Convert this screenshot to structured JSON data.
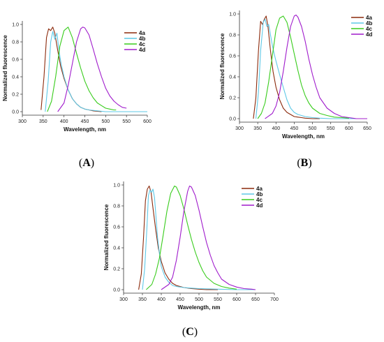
{
  "colors": {
    "4a": "#8b2a0c",
    "4b": "#5ec8e6",
    "4c": "#38cc1c",
    "4d": "#a01ccc"
  },
  "chart_data": [
    {
      "panel": "A",
      "type": "line",
      "xlabel": "Wavelength, nm",
      "ylabel": "Normalized fluorescence",
      "xlim": [
        300,
        600
      ],
      "ylim": [
        0,
        1.0
      ],
      "xticks": [
        300,
        350,
        400,
        450,
        500,
        550,
        600
      ],
      "yticks": [
        0.0,
        0.2,
        0.4,
        0.6,
        0.8,
        1.0
      ],
      "legend_position": "top-right",
      "grid": false,
      "series": [
        {
          "name": "4a",
          "x": [
            345,
            352,
            358,
            363,
            368,
            373,
            378,
            385,
            392,
            400,
            410,
            420,
            430,
            440,
            450,
            460,
            470,
            480,
            490
          ],
          "y": [
            0.02,
            0.4,
            0.85,
            0.95,
            0.93,
            0.97,
            0.9,
            0.7,
            0.52,
            0.38,
            0.25,
            0.15,
            0.09,
            0.05,
            0.03,
            0.02,
            0.01,
            0.005,
            0.0
          ]
        },
        {
          "name": "4b",
          "x": [
            355,
            362,
            368,
            373,
            378,
            383,
            388,
            393,
            400,
            410,
            420,
            430,
            440,
            450,
            460,
            480,
            500,
            550,
            600
          ],
          "y": [
            0.0,
            0.35,
            0.8,
            0.92,
            0.83,
            0.9,
            0.7,
            0.55,
            0.4,
            0.25,
            0.15,
            0.09,
            0.05,
            0.03,
            0.02,
            0.01,
            0.0,
            0.0,
            0.0
          ]
        },
        {
          "name": "4c",
          "x": [
            360,
            370,
            380,
            390,
            400,
            410,
            420,
            430,
            440,
            450,
            460,
            470,
            480,
            490,
            500,
            510,
            520,
            525
          ],
          "y": [
            0.0,
            0.12,
            0.4,
            0.75,
            0.93,
            0.97,
            0.85,
            0.67,
            0.5,
            0.35,
            0.24,
            0.16,
            0.1,
            0.07,
            0.04,
            0.03,
            0.02,
            0.02
          ]
        },
        {
          "name": "4d",
          "x": [
            385,
            400,
            410,
            420,
            430,
            440,
            445,
            450,
            460,
            470,
            480,
            490,
            500,
            510,
            520,
            530,
            540,
            550
          ],
          "y": [
            0.0,
            0.1,
            0.3,
            0.55,
            0.8,
            0.95,
            0.97,
            0.96,
            0.88,
            0.72,
            0.55,
            0.4,
            0.27,
            0.18,
            0.12,
            0.08,
            0.05,
            0.04
          ]
        }
      ]
    },
    {
      "panel": "B",
      "type": "line",
      "xlabel": "Wavelength, nm",
      "ylabel": "Normalized fluorescence",
      "xlim": [
        300,
        650
      ],
      "ylim": [
        0,
        1.0
      ],
      "xticks": [
        300,
        350,
        400,
        450,
        500,
        550,
        600,
        650
      ],
      "yticks": [
        0.0,
        0.2,
        0.4,
        0.6,
        0.8,
        1.0
      ],
      "legend_position": "top-right",
      "grid": false,
      "series": [
        {
          "name": "4a",
          "x": [
            338,
            345,
            352,
            358,
            363,
            368,
            373,
            378,
            385,
            392,
            400,
            410,
            420,
            430,
            440,
            450,
            460,
            470,
            480,
            500,
            520
          ],
          "y": [
            0.0,
            0.2,
            0.65,
            0.93,
            0.9,
            0.95,
            0.98,
            0.88,
            0.65,
            0.45,
            0.3,
            0.18,
            0.1,
            0.06,
            0.04,
            0.02,
            0.015,
            0.01,
            0.005,
            0.0,
            0.0
          ]
        },
        {
          "name": "4b",
          "x": [
            345,
            352,
            358,
            365,
            370,
            375,
            380,
            385,
            390,
            395,
            400,
            410,
            420,
            430,
            440,
            450,
            460,
            470,
            480,
            500,
            520,
            550,
            600,
            650
          ],
          "y": [
            0.0,
            0.25,
            0.65,
            0.92,
            0.95,
            0.88,
            0.9,
            0.8,
            0.7,
            0.62,
            0.55,
            0.42,
            0.3,
            0.18,
            0.1,
            0.06,
            0.04,
            0.03,
            0.02,
            0.01,
            0.005,
            0.0,
            0.0,
            0.0
          ]
        },
        {
          "name": "4c",
          "x": [
            350,
            360,
            370,
            380,
            390,
            400,
            410,
            420,
            430,
            440,
            450,
            460,
            470,
            480,
            490,
            500,
            520,
            540,
            560,
            580,
            600
          ],
          "y": [
            0.0,
            0.05,
            0.15,
            0.35,
            0.6,
            0.85,
            0.96,
            0.98,
            0.92,
            0.78,
            0.62,
            0.46,
            0.32,
            0.22,
            0.15,
            0.1,
            0.05,
            0.03,
            0.015,
            0.01,
            0.005
          ]
        },
        {
          "name": "4d",
          "x": [
            370,
            390,
            400,
            410,
            420,
            430,
            440,
            450,
            455,
            460,
            470,
            480,
            490,
            500,
            510,
            520,
            540,
            560,
            580,
            600,
            620,
            650
          ],
          "y": [
            0.0,
            0.05,
            0.12,
            0.25,
            0.45,
            0.68,
            0.88,
            0.98,
            0.99,
            0.97,
            0.88,
            0.74,
            0.57,
            0.42,
            0.3,
            0.2,
            0.1,
            0.05,
            0.02,
            0.01,
            0.0,
            0.0
          ]
        }
      ]
    },
    {
      "panel": "C",
      "type": "line",
      "xlabel": "Wavelength, nm",
      "ylabel": "Normalized fluorescence",
      "xlim": [
        300,
        700
      ],
      "ylim": [
        0,
        1.0
      ],
      "xticks": [
        300,
        350,
        400,
        450,
        500,
        550,
        600,
        650,
        700
      ],
      "yticks": [
        0.0,
        0.2,
        0.4,
        0.6,
        0.8,
        1.0
      ],
      "legend_position": "top-right",
      "grid": false,
      "series": [
        {
          "name": "4a",
          "x": [
            340,
            347,
            353,
            358,
            363,
            368,
            373,
            378,
            385,
            392,
            400,
            410,
            420,
            430,
            440,
            450,
            460,
            480,
            500,
            520,
            550
          ],
          "y": [
            0.0,
            0.15,
            0.5,
            0.85,
            0.96,
            0.99,
            0.93,
            0.78,
            0.58,
            0.4,
            0.27,
            0.16,
            0.1,
            0.06,
            0.04,
            0.03,
            0.02,
            0.01,
            0.005,
            0.0,
            0.0
          ]
        },
        {
          "name": "4b",
          "x": [
            350,
            356,
            362,
            366,
            370,
            374,
            378,
            382,
            386,
            390,
            395,
            400,
            410,
            420,
            430,
            440,
            460,
            480,
            500,
            550,
            600,
            650
          ],
          "y": [
            0.0,
            0.2,
            0.6,
            0.9,
            0.95,
            0.93,
            0.96,
            0.88,
            0.7,
            0.5,
            0.35,
            0.22,
            0.12,
            0.07,
            0.04,
            0.03,
            0.02,
            0.015,
            0.01,
            0.005,
            0.0,
            0.0
          ]
        },
        {
          "name": "4c",
          "x": [
            360,
            375,
            385,
            395,
            405,
            415,
            425,
            435,
            440,
            450,
            460,
            470,
            480,
            490,
            500,
            510,
            520,
            540,
            560,
            580,
            600
          ],
          "y": [
            0.0,
            0.05,
            0.15,
            0.3,
            0.52,
            0.75,
            0.92,
            0.99,
            0.98,
            0.9,
            0.77,
            0.62,
            0.48,
            0.36,
            0.26,
            0.18,
            0.12,
            0.06,
            0.03,
            0.015,
            0.005
          ]
        },
        {
          "name": "4d",
          "x": [
            400,
            420,
            430,
            440,
            450,
            460,
            470,
            475,
            480,
            490,
            500,
            510,
            520,
            530,
            540,
            550,
            560,
            580,
            600,
            620,
            640,
            650
          ],
          "y": [
            0.0,
            0.05,
            0.12,
            0.28,
            0.5,
            0.75,
            0.94,
            0.99,
            0.98,
            0.9,
            0.76,
            0.6,
            0.45,
            0.33,
            0.23,
            0.16,
            0.1,
            0.05,
            0.025,
            0.01,
            0.005,
            0.0
          ]
        }
      ]
    }
  ]
}
